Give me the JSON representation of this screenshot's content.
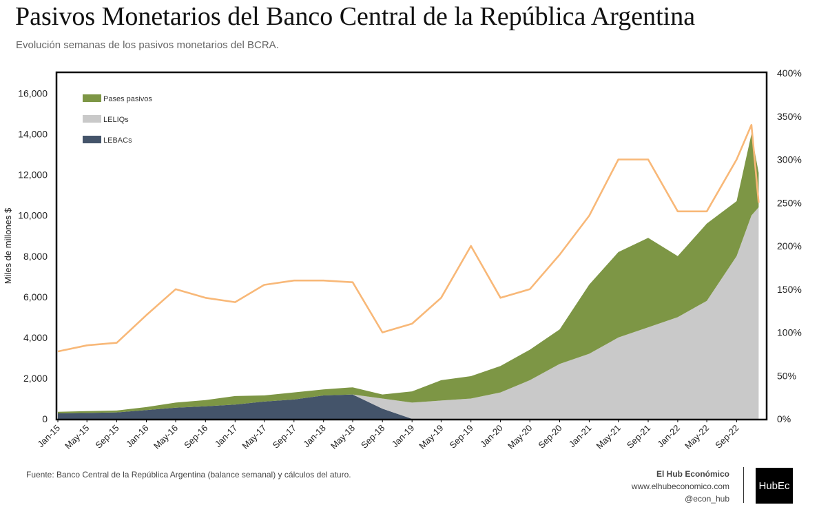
{
  "header": {
    "title": "Pasivos Monetarios del Banco Central de la República Argentina",
    "subtitle": "Evolución semanas de los pasivos monetarios del BCRA."
  },
  "footer": {
    "source": "Fuente: Banco Central de la República Argentina (balance semanal) y cálculos del aturo.",
    "brand_name": "El Hub Económico",
    "brand_url": "www.elhubeconomico.com",
    "brand_handle": "@econ_hub",
    "logo_text": "HubEc"
  },
  "chart_data": {
    "type": "area",
    "title": "",
    "xlabel": "",
    "ylabel": "Miles de millones $",
    "y2label": "",
    "ylim": [
      0,
      17000
    ],
    "y_ticks": [
      "0",
      "2,000",
      "4,000",
      "6,000",
      "8,000",
      "10,000",
      "12,000",
      "14,000",
      "16,000"
    ],
    "y2lim": [
      0,
      400
    ],
    "y2_ticks": [
      "0%",
      "50%",
      "100%",
      "150%",
      "200%",
      "250%",
      "300%",
      "350%",
      "400%"
    ],
    "x_ticks": [
      "Jan-15",
      "May-15",
      "Sep-15",
      "Jan-16",
      "May-16",
      "Sep-16",
      "Jan-17",
      "May-17",
      "Sep-17",
      "Jan-18",
      "May-18",
      "Sep-18",
      "Jan-19",
      "May-19",
      "Sep-19",
      "Jan-20",
      "May-20",
      "Sep-20",
      "Jan-21",
      "May-21",
      "Sep-21",
      "Jan-22",
      "May-22",
      "Sep-22"
    ],
    "legend_position": "top-left",
    "stack_order": [
      "LEBACs",
      "LELIQs",
      "Pases pasivos"
    ],
    "x": [
      "2015-01",
      "2015-05",
      "2015-09",
      "2016-01",
      "2016-05",
      "2016-09",
      "2017-01",
      "2017-05",
      "2017-09",
      "2018-01",
      "2018-05",
      "2018-09",
      "2019-01",
      "2019-05",
      "2019-09",
      "2020-01",
      "2020-05",
      "2020-09",
      "2021-01",
      "2021-05",
      "2021-09",
      "2022-01",
      "2022-05",
      "2022-09",
      "2022-11",
      "2022-12"
    ],
    "series": [
      {
        "name": "LEBACs",
        "color": "#44546a",
        "axis": "left",
        "values": [
          270,
          290,
          320,
          430,
          550,
          620,
          700,
          850,
          950,
          1150,
          1200,
          500,
          0,
          0,
          0,
          0,
          0,
          0,
          0,
          0,
          0,
          0,
          0,
          0,
          0,
          0
        ]
      },
      {
        "name": "LELIQs",
        "color": "#c9c9c9",
        "axis": "left",
        "values": [
          0,
          0,
          0,
          0,
          0,
          0,
          0,
          0,
          0,
          0,
          0,
          500,
          800,
          900,
          1000,
          1300,
          1900,
          2700,
          3200,
          4000,
          4500,
          5000,
          5800,
          8000,
          10000,
          10400
        ]
      },
      {
        "name": "Pases pasivos",
        "color": "#7d9645",
        "axis": "left",
        "values": [
          80,
          90,
          90,
          150,
          250,
          300,
          420,
          300,
          350,
          300,
          350,
          200,
          550,
          1000,
          1100,
          1300,
          1500,
          1700,
          3400,
          4200,
          4400,
          3000,
          3800,
          2700,
          4000,
          1700
        ]
      },
      {
        "name": "",
        "color": "#f8b878",
        "axis": "right",
        "type": "line",
        "values": [
          78,
          85,
          88,
          120,
          150,
          140,
          135,
          155,
          160,
          160,
          158,
          100,
          110,
          140,
          200,
          140,
          150,
          190,
          235,
          300,
          300,
          240,
          240,
          300,
          340,
          250
        ]
      }
    ]
  }
}
